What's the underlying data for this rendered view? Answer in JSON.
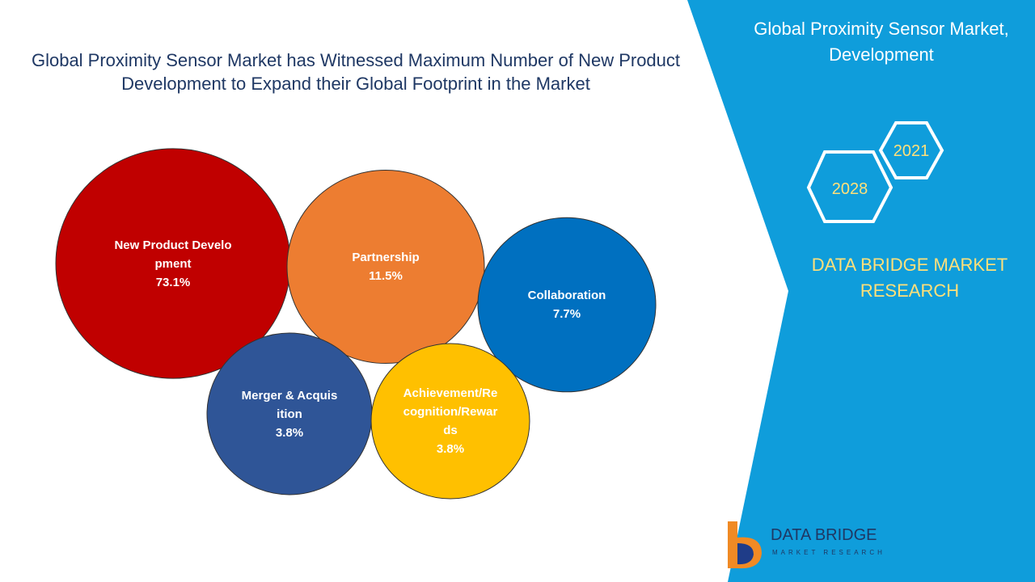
{
  "chart_data": {
    "type": "bubble",
    "title": "Global Proximity Sensor Market has Witnessed Maximum Number of New Product Development to Expand their Global Footprint in the Market",
    "categories": [
      "New Product Development",
      "Partnership",
      "Collaboration",
      "Merger & Acquisition",
      "Achievement/Recognition/Rewards"
    ],
    "values": [
      73.1,
      11.5,
      7.7,
      3.8,
      3.8
    ],
    "value_labels": [
      "73.1%",
      "11.5%",
      "7.7%",
      "3.8%",
      "3.8%"
    ],
    "colors": [
      "#c00000",
      "#ed7d31",
      "#0070c0",
      "#2f5597",
      "#ffc000"
    ]
  },
  "side_panel": {
    "title": "Global Proximity Sensor Market, Development",
    "years": [
      "2021",
      "2028"
    ],
    "brand": "DATA BRIDGE MARKET RESEARCH"
  },
  "logo": {
    "name": "DATA BRIDGE",
    "tagline": "MARKET RESEARCH"
  }
}
